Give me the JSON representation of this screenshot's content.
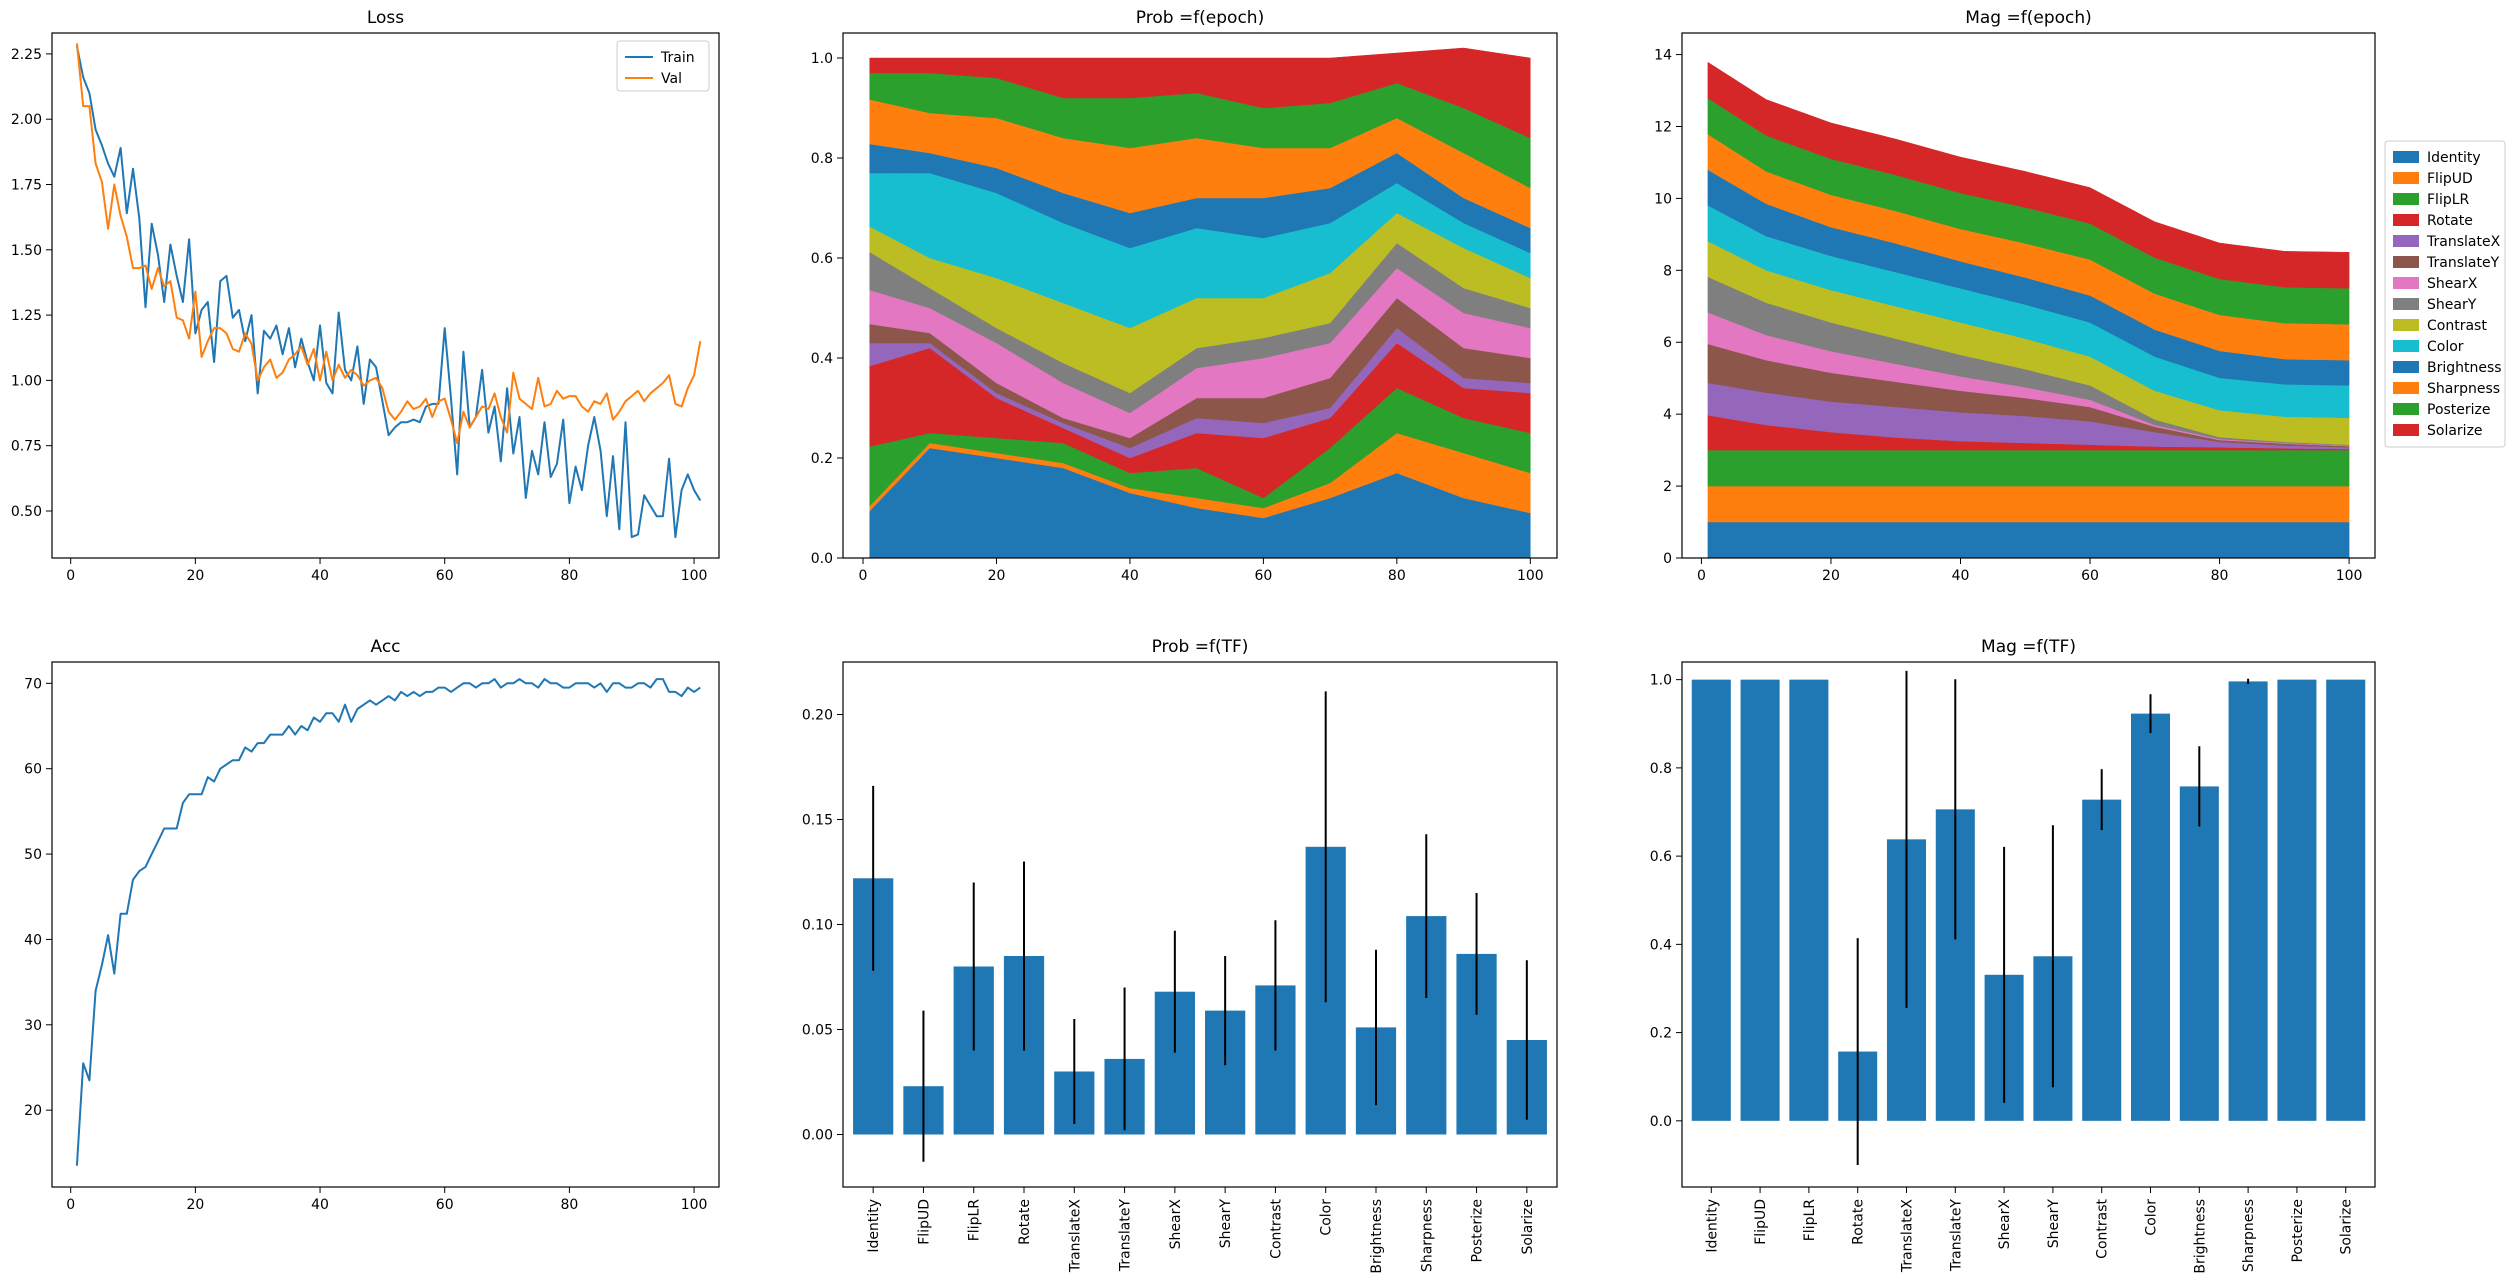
{
  "chart_data": [
    {
      "id": "loss",
      "type": "line",
      "title": "Loss",
      "xlim": [
        -3,
        104
      ],
      "ylim": [
        0.32,
        2.33
      ],
      "xticks": [
        0,
        20,
        40,
        60,
        80,
        100
      ],
      "yticks": [
        0.5,
        0.75,
        1.0,
        1.25,
        1.5,
        1.75,
        2.0,
        2.25
      ],
      "ytick_decimals": 2,
      "legend": "top-right",
      "series": [
        {
          "name": "Train",
          "color": "#1f77b4",
          "values": [
            2.28,
            2.16,
            2.1,
            1.96,
            1.9,
            1.83,
            1.78,
            1.89,
            1.64,
            1.81,
            1.62,
            1.28,
            1.6,
            1.48,
            1.3,
            1.52,
            1.4,
            1.3,
            1.54,
            1.18,
            1.27,
            1.3,
            1.07,
            1.38,
            1.4,
            1.24,
            1.27,
            1.15,
            1.25,
            0.95,
            1.19,
            1.16,
            1.21,
            1.1,
            1.2,
            1.05,
            1.16,
            1.07,
            1.0,
            1.21,
            0.99,
            0.95,
            1.26,
            1.04,
            1.0,
            1.13,
            0.91,
            1.08,
            1.05,
            0.92,
            0.79,
            0.82,
            0.84,
            0.84,
            0.85,
            0.84,
            0.9,
            0.91,
            0.91,
            1.2,
            0.93,
            0.64,
            1.11,
            0.82,
            0.86,
            1.04,
            0.8,
            0.9,
            0.69,
            0.97,
            0.72,
            0.86,
            0.55,
            0.73,
            0.64,
            0.84,
            0.63,
            0.68,
            0.85,
            0.53,
            0.67,
            0.58,
            0.75,
            0.86,
            0.73,
            0.48,
            0.71,
            0.43,
            0.84,
            0.4,
            0.41,
            0.56,
            0.52,
            0.48,
            0.48,
            0.7,
            0.4,
            0.58,
            0.64,
            0.58,
            0.54
          ]
        },
        {
          "name": "Val",
          "color": "#ff7f0e",
          "values": [
            2.29,
            2.05,
            2.05,
            1.83,
            1.76,
            1.58,
            1.75,
            1.63,
            1.55,
            1.43,
            1.43,
            1.44,
            1.35,
            1.43,
            1.36,
            1.38,
            1.24,
            1.23,
            1.16,
            1.34,
            1.09,
            1.15,
            1.2,
            1.2,
            1.18,
            1.12,
            1.11,
            1.18,
            1.14,
            1.0,
            1.05,
            1.08,
            1.01,
            1.03,
            1.08,
            1.1,
            1.13,
            1.06,
            1.12,
            1.0,
            1.11,
            1.0,
            1.06,
            1.01,
            1.04,
            1.02,
            0.98,
            1.0,
            1.01,
            0.97,
            0.88,
            0.85,
            0.88,
            0.92,
            0.89,
            0.9,
            0.93,
            0.86,
            0.92,
            0.93,
            0.85,
            0.76,
            0.88,
            0.82,
            0.86,
            0.9,
            0.89,
            0.95,
            0.86,
            0.8,
            1.03,
            0.93,
            0.91,
            0.89,
            1.01,
            0.9,
            0.91,
            0.96,
            0.93,
            0.94,
            0.94,
            0.9,
            0.88,
            0.92,
            0.91,
            0.95,
            0.85,
            0.88,
            0.92,
            0.94,
            0.96,
            0.92,
            0.95,
            0.97,
            0.99,
            1.02,
            0.91,
            0.9,
            0.97,
            1.02,
            1.15
          ]
        }
      ]
    },
    {
      "id": "prob_epoch",
      "type": "area",
      "title": "Prob =f(epoch)",
      "xlim": [
        -3,
        104
      ],
      "ylim": [
        0,
        1.05
      ],
      "xticks": [
        0,
        20,
        40,
        60,
        80,
        100
      ],
      "yticks": [
        0.0,
        0.2,
        0.4,
        0.6,
        0.8,
        1.0
      ],
      "ytick_decimals": 1,
      "stacked": true,
      "x": [
        0,
        10,
        20,
        30,
        40,
        50,
        60,
        70,
        80,
        90,
        100
      ],
      "series": [
        {
          "name": "Identity",
          "color": "#1f77b4",
          "values": [
            0.08,
            0.22,
            0.2,
            0.18,
            0.13,
            0.1,
            0.08,
            0.12,
            0.17,
            0.12,
            0.09
          ]
        },
        {
          "name": "FlipUD",
          "color": "#ff7f0e",
          "values": [
            0.01,
            0.01,
            0.01,
            0.01,
            0.01,
            0.02,
            0.02,
            0.03,
            0.08,
            0.09,
            0.08
          ]
        },
        {
          "name": "FlipLR",
          "color": "#2ca02c",
          "values": [
            0.13,
            0.02,
            0.03,
            0.04,
            0.03,
            0.06,
            0.02,
            0.07,
            0.09,
            0.07,
            0.08
          ]
        },
        {
          "name": "Rotate",
          "color": "#d62728",
          "values": [
            0.16,
            0.17,
            0.08,
            0.03,
            0.03,
            0.07,
            0.12,
            0.06,
            0.09,
            0.06,
            0.08
          ]
        },
        {
          "name": "TranslateX",
          "color": "#9467bd",
          "values": [
            0.05,
            0.01,
            0.01,
            0.01,
            0.02,
            0.03,
            0.03,
            0.02,
            0.03,
            0.02,
            0.02
          ]
        },
        {
          "name": "TranslateY",
          "color": "#8c564b",
          "values": [
            0.04,
            0.02,
            0.02,
            0.01,
            0.02,
            0.04,
            0.05,
            0.06,
            0.06,
            0.06,
            0.05
          ]
        },
        {
          "name": "ShearX",
          "color": "#e377c2",
          "values": [
            0.07,
            0.05,
            0.08,
            0.07,
            0.05,
            0.06,
            0.08,
            0.07,
            0.06,
            0.07,
            0.06
          ]
        },
        {
          "name": "ShearY",
          "color": "#7f7f7f",
          "values": [
            0.08,
            0.04,
            0.03,
            0.04,
            0.04,
            0.04,
            0.04,
            0.04,
            0.05,
            0.05,
            0.04
          ]
        },
        {
          "name": "Contrast",
          "color": "#bcbd22",
          "values": [
            0.05,
            0.06,
            0.1,
            0.12,
            0.13,
            0.1,
            0.08,
            0.1,
            0.06,
            0.08,
            0.06
          ]
        },
        {
          "name": "Color",
          "color": "#17becf",
          "values": [
            0.1,
            0.17,
            0.17,
            0.16,
            0.16,
            0.14,
            0.12,
            0.1,
            0.06,
            0.05,
            0.05
          ]
        },
        {
          "name": "Brightness",
          "color": "#1f77b4",
          "values": [
            0.06,
            0.04,
            0.05,
            0.06,
            0.07,
            0.06,
            0.08,
            0.07,
            0.06,
            0.05,
            0.05
          ]
        },
        {
          "name": "Sharpness",
          "color": "#ff7f0e",
          "values": [
            0.09,
            0.08,
            0.1,
            0.11,
            0.13,
            0.12,
            0.1,
            0.08,
            0.07,
            0.09,
            0.08
          ]
        },
        {
          "name": "Posterize",
          "color": "#2ca02c",
          "values": [
            0.05,
            0.08,
            0.08,
            0.08,
            0.1,
            0.09,
            0.08,
            0.09,
            0.07,
            0.09,
            0.1
          ]
        },
        {
          "name": "Solarize",
          "color": "#d62728",
          "values": [
            0.03,
            0.03,
            0.04,
            0.08,
            0.08,
            0.07,
            0.1,
            0.09,
            0.06,
            0.12,
            0.16
          ]
        }
      ]
    },
    {
      "id": "mag_epoch",
      "type": "area",
      "title": "Mag =f(epoch)",
      "xlim": [
        -3,
        104
      ],
      "ylim": [
        0,
        14.6
      ],
      "xticks": [
        0,
        20,
        40,
        60,
        80,
        100
      ],
      "yticks": [
        0,
        2,
        4,
        6,
        8,
        10,
        12,
        14
      ],
      "ytick_decimals": 0,
      "stacked": true,
      "legend": "right, outside",
      "x": [
        0,
        10,
        20,
        30,
        40,
        50,
        60,
        70,
        80,
        90,
        100
      ],
      "series": [
        {
          "name": "Identity",
          "color": "#1f77b4",
          "values": [
            1,
            1,
            1,
            1,
            1,
            1,
            1,
            1,
            1,
            1,
            1
          ]
        },
        {
          "name": "FlipUD",
          "color": "#ff7f0e",
          "values": [
            1,
            1,
            1,
            1,
            1,
            1,
            1,
            1,
            1,
            1,
            1
          ]
        },
        {
          "name": "FlipLR",
          "color": "#2ca02c",
          "values": [
            1,
            1,
            1,
            1,
            1,
            1,
            1,
            1,
            1,
            1,
            1
          ]
        },
        {
          "name": "Rotate",
          "color": "#d62728",
          "values": [
            1.0,
            0.7,
            0.5,
            0.35,
            0.25,
            0.2,
            0.15,
            0.1,
            0.08,
            0.05,
            0.03
          ]
        },
        {
          "name": "TranslateX",
          "color": "#9467bd",
          "values": [
            0.9,
            0.9,
            0.85,
            0.85,
            0.8,
            0.75,
            0.65,
            0.4,
            0.15,
            0.08,
            0.05
          ]
        },
        {
          "name": "TranslateY",
          "color": "#8c564b",
          "values": [
            1.1,
            0.9,
            0.8,
            0.7,
            0.6,
            0.5,
            0.4,
            0.15,
            0.05,
            0.05,
            0.03
          ]
        },
        {
          "name": "ShearX",
          "color": "#e377c2",
          "values": [
            0.9,
            0.7,
            0.6,
            0.5,
            0.4,
            0.3,
            0.2,
            0.05,
            0.03,
            0.02,
            0.02
          ]
        },
        {
          "name": "ShearY",
          "color": "#7f7f7f",
          "values": [
            1.0,
            0.9,
            0.8,
            0.7,
            0.6,
            0.5,
            0.4,
            0.15,
            0.05,
            0.03,
            0.02
          ]
        },
        {
          "name": "Contrast",
          "color": "#bcbd22",
          "values": [
            1.0,
            0.9,
            0.9,
            0.9,
            0.9,
            0.85,
            0.8,
            0.8,
            0.75,
            0.7,
            0.75
          ]
        },
        {
          "name": "Color",
          "color": "#17becf",
          "values": [
            1.0,
            0.95,
            0.95,
            0.95,
            0.95,
            0.95,
            0.95,
            0.95,
            0.9,
            0.9,
            0.9
          ]
        },
        {
          "name": "Brightness",
          "color": "#1f77b4",
          "values": [
            1.0,
            0.9,
            0.8,
            0.8,
            0.75,
            0.75,
            0.75,
            0.75,
            0.75,
            0.7,
            0.7
          ]
        },
        {
          "name": "Sharpness",
          "color": "#ff7f0e",
          "values": [
            1.0,
            0.9,
            0.9,
            0.9,
            0.9,
            0.95,
            1.0,
            1.0,
            1.0,
            1.0,
            1.0
          ]
        },
        {
          "name": "Posterize",
          "color": "#2ca02c",
          "values": [
            1.0,
            1.0,
            1.0,
            1.0,
            1.0,
            1.0,
            1.0,
            1.0,
            1.0,
            1.0,
            1.0
          ]
        },
        {
          "name": "Solarize",
          "color": "#d62728",
          "values": [
            1.0,
            1.0,
            1.0,
            1.0,
            1.0,
            1.0,
            1.0,
            1.0,
            1.0,
            1.0,
            1.0
          ]
        }
      ]
    },
    {
      "id": "acc",
      "type": "line",
      "title": "Acc",
      "xlim": [
        -3,
        104
      ],
      "ylim": [
        11,
        72.5
      ],
      "xticks": [
        0,
        20,
        40,
        60,
        80,
        100
      ],
      "yticks": [
        20,
        30,
        40,
        50,
        60,
        70
      ],
      "ytick_decimals": 0,
      "series": [
        {
          "name": "",
          "color": "#1f77b4",
          "values": [
            13.5,
            25.5,
            23.5,
            34.0,
            37.0,
            40.5,
            36.0,
            43.0,
            43.0,
            47.0,
            48.0,
            48.5,
            50.0,
            51.5,
            53.0,
            53.0,
            53.0,
            56.0,
            57.0,
            57.0,
            57.0,
            59.0,
            58.5,
            60.0,
            60.5,
            61.0,
            61.0,
            62.5,
            62.0,
            63.0,
            63.0,
            64.0,
            64.0,
            64.0,
            65.0,
            64.0,
            65.0,
            64.5,
            66.0,
            65.5,
            66.5,
            66.5,
            65.5,
            67.5,
            65.5,
            67.0,
            67.5,
            68.0,
            67.5,
            68.0,
            68.5,
            68.0,
            69.0,
            68.5,
            69.0,
            68.5,
            69.0,
            69.0,
            69.5,
            69.5,
            69.0,
            69.5,
            70.0,
            70.0,
            69.5,
            70.0,
            70.0,
            70.5,
            69.5,
            70.0,
            70.0,
            70.5,
            70.0,
            70.0,
            69.5,
            70.5,
            70.0,
            70.0,
            69.5,
            69.5,
            70.0,
            70.0,
            70.0,
            69.5,
            70.0,
            69.0,
            70.0,
            70.0,
            69.5,
            69.5,
            70.0,
            70.0,
            69.5,
            70.5,
            70.5,
            69.0,
            69.0,
            68.5,
            69.5,
            69.0,
            69.5
          ]
        }
      ]
    },
    {
      "id": "prob_tf",
      "type": "bar",
      "title": "Prob =f(TF)",
      "ylim": [
        -0.025,
        0.225
      ],
      "yticks": [
        0.0,
        0.05,
        0.1,
        0.15,
        0.2
      ],
      "ytick_decimals": 2,
      "bar_color": "#1f77b4",
      "categories": [
        "Identity",
        "FlipUD",
        "FlipLR",
        "Rotate",
        "TranslateX",
        "TranslateY",
        "ShearX",
        "ShearY",
        "Contrast",
        "Color",
        "Brightness",
        "Sharpness",
        "Posterize",
        "Solarize"
      ],
      "values": [
        0.122,
        0.023,
        0.08,
        0.085,
        0.03,
        0.036,
        0.068,
        0.059,
        0.071,
        0.137,
        0.051,
        0.104,
        0.086,
        0.045
      ],
      "errors": [
        0.044,
        0.036,
        0.04,
        0.045,
        0.025,
        0.034,
        0.029,
        0.026,
        0.031,
        0.074,
        0.037,
        0.039,
        0.029,
        0.038
      ]
    },
    {
      "id": "mag_tf",
      "type": "bar",
      "title": "Mag =f(TF)",
      "ylim": [
        -0.15,
        1.04
      ],
      "yticks": [
        0.0,
        0.2,
        0.4,
        0.6,
        0.8,
        1.0
      ],
      "ytick_decimals": 1,
      "bar_color": "#1f77b4",
      "categories": [
        "Identity",
        "FlipUD",
        "FlipLR",
        "Rotate",
        "TranslateX",
        "TranslateY",
        "ShearX",
        "ShearY",
        "Contrast",
        "Color",
        "Brightness",
        "Sharpness",
        "Posterize",
        "Solarize"
      ],
      "values": [
        1.0,
        1.0,
        1.0,
        0.157,
        0.638,
        0.706,
        0.331,
        0.373,
        0.728,
        0.923,
        0.758,
        0.996,
        1.0,
        1.0
      ],
      "errors": [
        0,
        0,
        0,
        0.257,
        0.382,
        0.295,
        0.29,
        0.297,
        0.069,
        0.044,
        0.091,
        0.006,
        0,
        0
      ]
    }
  ]
}
